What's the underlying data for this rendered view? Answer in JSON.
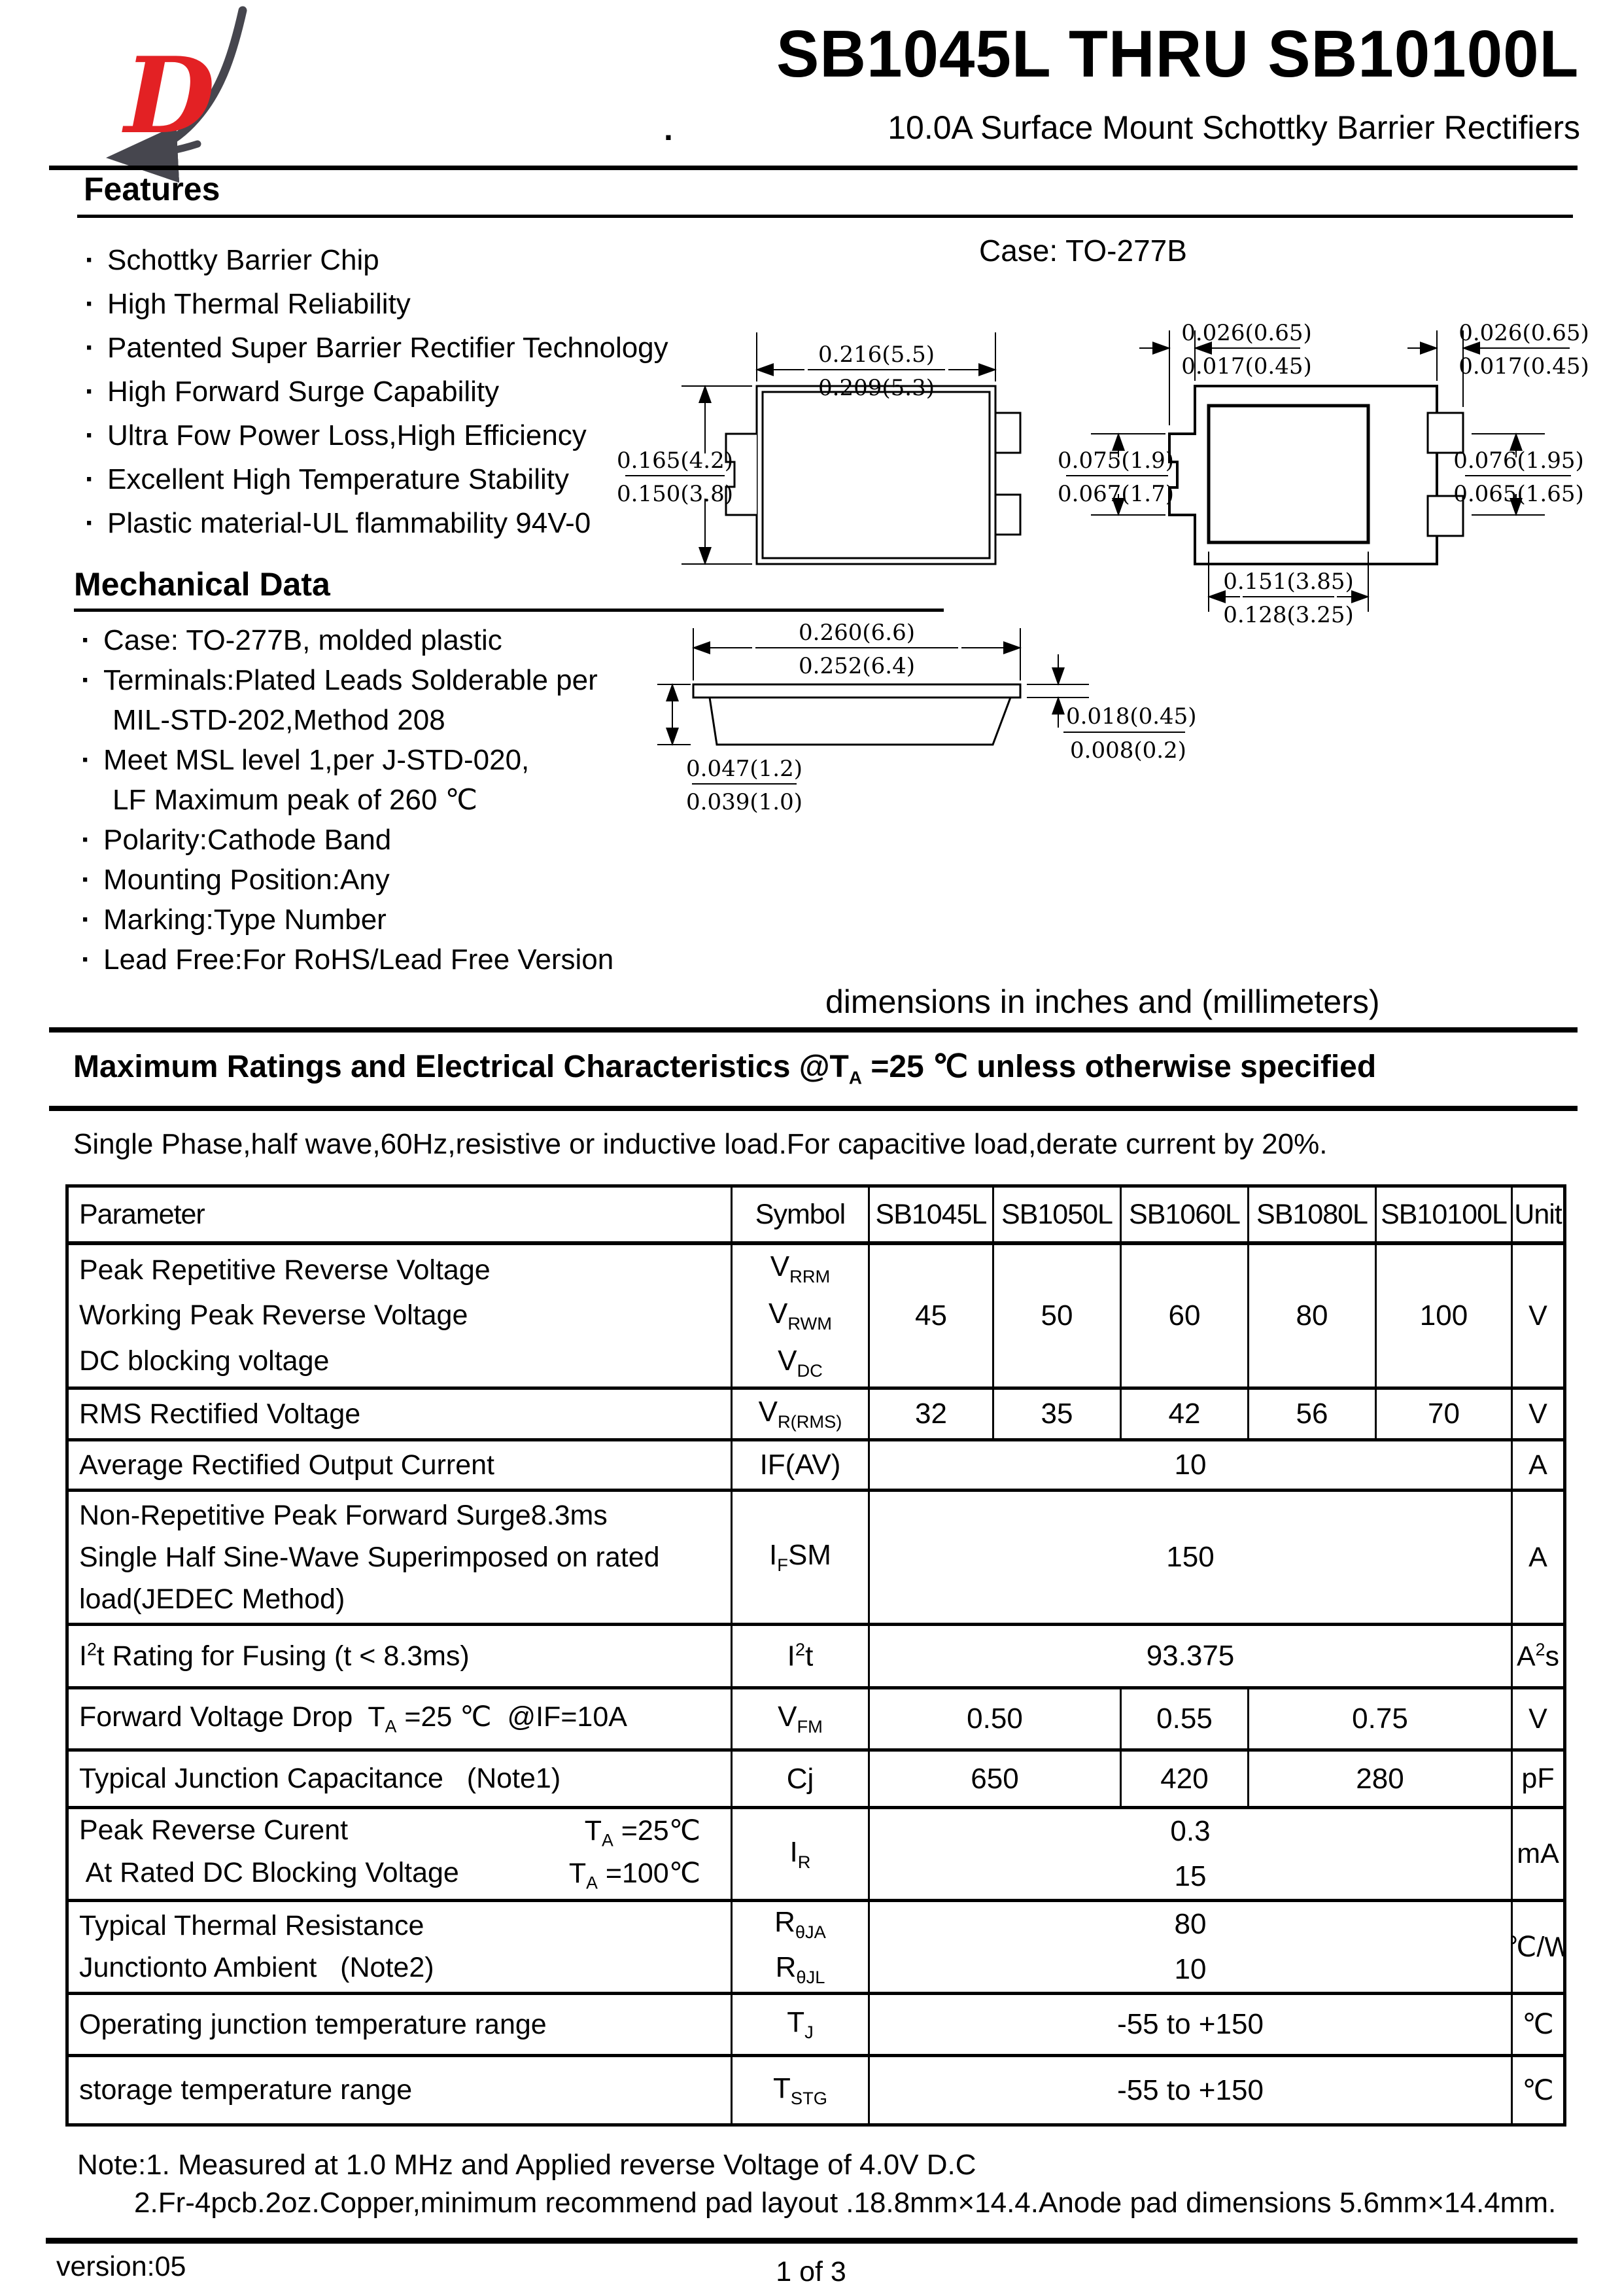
{
  "header": {
    "title": "SB1045L THRU SB10100L",
    "subtitle": "10.0A Surface Mount Schottky Barrier Rectifiers",
    "stray_dot": ".",
    "logo_letter": "D",
    "colors": {
      "logo_red": "#e32124",
      "logo_gray": "#46464e"
    }
  },
  "features": {
    "heading": "Features",
    "bullet": "·",
    "items": [
      "Schottky Barrier Chip",
      "High Thermal Reliability",
      "Patented Super Barrier Rectifier Technology",
      "High Forward Surge Capability",
      "Ultra Fow Power Loss,High Efficiency",
      "Excellent High Temperature Stability",
      "Plastic material-UL flammability 94V-0"
    ]
  },
  "case_label": "Case: TO-277B",
  "dims_note": "dimensions in inches and (millimeters)",
  "drawings": {
    "top_view": {
      "width_in": "0.216(5.5)",
      "width_mm": "0.209(5.3)",
      "height_in": "0.165(4.2)",
      "height_mm": "0.150(3.8)"
    },
    "bottom_view": {
      "tab_left_in": "0.026(0.65)",
      "tab_left_mm": "0.017(0.45)",
      "tab_right_in": "0.026(0.65)",
      "tab_right_mm": "0.017(0.45)",
      "left_in": "0.075(1.9)",
      "left_mm": "0.067(1.7)",
      "right_in": "0.076(1.95)",
      "right_mm": "0.065(1.65)",
      "pad_in": "0.151(3.85)",
      "pad_mm": "0.128(3.25)"
    },
    "side_view": {
      "width_in": "0.260(6.6)",
      "width_mm": "0.252(6.4)",
      "height_in": "0.047(1.2)",
      "height_mm": "0.039(1.0)",
      "lead_in": "0.018(0.45)",
      "lead_mm": "0.008(0.2)"
    }
  },
  "mechanical": {
    "heading": "Mechanical Data",
    "items": [
      {
        "b": true,
        "t": "Case: TO-277B, molded plastic"
      },
      {
        "b": true,
        "t": "Terminals:Plated Leads Solderable per"
      },
      {
        "b": false,
        "t": "MIL-STD-202,Method 208"
      },
      {
        "b": true,
        "t": "Meet MSL level 1,per J-STD-020,"
      },
      {
        "b": false,
        "t": "LF Maximum peak of 260 ℃"
      },
      {
        "b": true,
        "t": "Polarity:Cathode Band"
      },
      {
        "b": true,
        "t": "Mounting Position:Any"
      },
      {
        "b": true,
        "t": "Marking:Type Number"
      },
      {
        "b": true,
        "t": "Lead Free:For RoHS/Lead Free Version"
      }
    ]
  },
  "ratings": {
    "heading": [
      {
        "t": "Maximum Ratings and Electrical Characteristics @T"
      },
      {
        "s": "A"
      },
      {
        "t": " =25 ℃ unless otherwise specified"
      }
    ],
    "condition": "Single Phase,half wave,60Hz,resistive or inductive load.For capacitive load,derate current by 20%."
  },
  "table": {
    "headers": [
      "Parameter",
      "Symbol",
      "SB1045L",
      "SB1050L",
      "SB1060L",
      "SB1080L",
      "SB10100L",
      "Unit"
    ],
    "rows": [
      {
        "param": [
          {
            "parts": [
              {
                "t": "Peak Repetitive Reverse Voltage"
              }
            ]
          },
          {
            "parts": [
              {
                "t": "Working Peak Reverse Voltage"
              }
            ]
          },
          {
            "parts": [
              {
                "t": "DC blocking voltage"
              }
            ]
          }
        ],
        "symbol": [
          [
            {
              "t": "V"
            },
            {
              "s": "RRM"
            }
          ],
          [
            {
              "t": "V"
            },
            {
              "s": "RWM"
            }
          ],
          [
            {
              "t": "V"
            },
            {
              "s": "DC"
            }
          ]
        ],
        "values": [
          {
            "span": 1,
            "lines": [
              "45"
            ]
          },
          {
            "span": 1,
            "lines": [
              "50"
            ]
          },
          {
            "span": 1,
            "lines": [
              "60"
            ]
          },
          {
            "span": 1,
            "lines": [
              "80"
            ]
          },
          {
            "span": 1,
            "lines": [
              "100"
            ]
          }
        ],
        "unit": [
          {
            "t": "V"
          }
        ]
      },
      {
        "param": [
          {
            "parts": [
              {
                "t": "RMS Rectified Voltage"
              }
            ]
          }
        ],
        "symbol": [
          [
            {
              "t": "V"
            },
            {
              "s": "R(RMS)"
            }
          ]
        ],
        "values": [
          {
            "span": 1,
            "lines": [
              "32"
            ]
          },
          {
            "span": 1,
            "lines": [
              "35"
            ]
          },
          {
            "span": 1,
            "lines": [
              "42"
            ]
          },
          {
            "span": 1,
            "lines": [
              "56"
            ]
          },
          {
            "span": 1,
            "lines": [
              "70"
            ]
          }
        ],
        "unit": [
          {
            "t": "V"
          }
        ]
      },
      {
        "param": [
          {
            "parts": [
              {
                "t": "Average Rectified Output Current"
              }
            ]
          }
        ],
        "symbol": [
          [
            {
              "t": "IF(AV)"
            }
          ]
        ],
        "values": [
          {
            "span": 5,
            "lines": [
              "10"
            ]
          }
        ],
        "unit": [
          {
            "t": "A"
          }
        ]
      },
      {
        "param": [
          {
            "parts": [
              {
                "t": "Non-Repetitive Peak Forward Surge8.3ms"
              }
            ]
          },
          {
            "parts": [
              {
                "t": "Single Half Sine-Wave Superimposed on rated"
              }
            ]
          },
          {
            "parts": [
              {
                "t": "load(JEDEC Method)"
              }
            ]
          }
        ],
        "symbol": [
          [
            {
              "t": "I"
            },
            {
              "s": "F"
            },
            {
              "t": "SM"
            }
          ]
        ],
        "values": [
          {
            "span": 5,
            "lines": [
              "150"
            ]
          }
        ],
        "unit": [
          {
            "t": "A"
          }
        ]
      },
      {
        "param": [
          {
            "parts": [
              {
                "t": "I"
              },
              {
                "p": "2"
              },
              {
                "t": "t Rating for Fusing (t < 8.3ms)"
              }
            ]
          }
        ],
        "symbol": [
          [
            {
              "t": "I"
            },
            {
              "p": "2"
            },
            {
              "t": "t"
            }
          ]
        ],
        "values": [
          {
            "span": 5,
            "lines": [
              "93.375"
            ]
          }
        ],
        "unit": [
          {
            "t": "A"
          },
          {
            "p": "2"
          },
          {
            "t": "s"
          }
        ]
      },
      {
        "param": [
          {
            "parts": [
              {
                "t": "Forward Voltage Drop  T"
              },
              {
                "s": "A"
              },
              {
                "t": " =25 ℃  @IF=10A"
              }
            ]
          }
        ],
        "symbol": [
          [
            {
              "t": "V"
            },
            {
              "s": "FM"
            }
          ]
        ],
        "values": [
          {
            "span": 2,
            "lines": [
              "0.50"
            ]
          },
          {
            "span": 1,
            "lines": [
              "0.55"
            ]
          },
          {
            "span": 2,
            "lines": [
              "0.75"
            ]
          }
        ],
        "unit": [
          {
            "t": "V"
          }
        ]
      },
      {
        "param": [
          {
            "parts": [
              {
                "t": "Typical Junction Capacitance   (Note1)"
              }
            ]
          }
        ],
        "symbol": [
          [
            {
              "t": "Cj"
            }
          ]
        ],
        "values": [
          {
            "span": 2,
            "lines": [
              "650"
            ]
          },
          {
            "span": 1,
            "lines": [
              "420"
            ]
          },
          {
            "span": 2,
            "lines": [
              "280"
            ]
          }
        ],
        "unit": [
          {
            "t": "pF"
          }
        ]
      },
      {
        "param": [
          {
            "parts": [
              {
                "t": "Peak Reverse Curent"
              }
            ],
            "right": [
              {
                "t": "T"
              },
              {
                "s": "A"
              },
              {
                "t": " =25℃"
              }
            ]
          },
          {
            "parts": [
              {
                "t": " At Rated DC Blocking Voltage"
              }
            ],
            "right": [
              {
                "t": "T"
              },
              {
                "s": "A"
              },
              {
                "t": " =100℃"
              }
            ]
          }
        ],
        "symbol": [
          [
            {
              "t": "I"
            },
            {
              "s": "R"
            }
          ]
        ],
        "values": [
          {
            "span": 5,
            "lines": [
              "0.3",
              "15"
            ]
          }
        ],
        "unit": [
          {
            "t": "mA"
          }
        ]
      },
      {
        "param": [
          {
            "parts": [
              {
                "t": "Typical Thermal Resistance"
              }
            ]
          },
          {
            "parts": [
              {
                "t": "Junctionto Ambient   (Note2)"
              }
            ]
          }
        ],
        "symbol": [
          [
            {
              "t": "R"
            },
            {
              "s": "θJA"
            }
          ],
          [
            {
              "t": "R"
            },
            {
              "s": "θJL"
            }
          ]
        ],
        "values": [
          {
            "span": 5,
            "lines": [
              "80",
              "10"
            ]
          }
        ],
        "unit": [
          {
            "t": "℃/W"
          }
        ]
      },
      {
        "param": [
          {
            "parts": [
              {
                "t": "Operating junction temperature range"
              }
            ]
          }
        ],
        "symbol": [
          [
            {
              "t": "T"
            },
            {
              "s": "J"
            }
          ]
        ],
        "values": [
          {
            "span": 5,
            "lines": [
              "-55 to +150"
            ]
          }
        ],
        "unit": [
          {
            "t": "℃"
          }
        ]
      },
      {
        "param": [
          {
            "parts": [
              {
                "t": "storage temperature range"
              }
            ]
          }
        ],
        "symbol": [
          [
            {
              "t": "T"
            },
            {
              "s": "STG"
            }
          ]
        ],
        "values": [
          {
            "span": 5,
            "lines": [
              "-55 to +150"
            ]
          }
        ],
        "unit": [
          {
            "t": "℃"
          }
        ]
      }
    ]
  },
  "notes": [
    "Note:1.  Measured at 1.0 MHz and Applied reverse Voltage of 4.0V D.C",
    "2.Fr-4pcb.2oz.Copper,minimum recommend pad layout .18.8mm×14.4.Anode pad dimensions 5.6mm×14.4mm."
  ],
  "footer": {
    "version": "version:05",
    "page": "1 of 3"
  }
}
